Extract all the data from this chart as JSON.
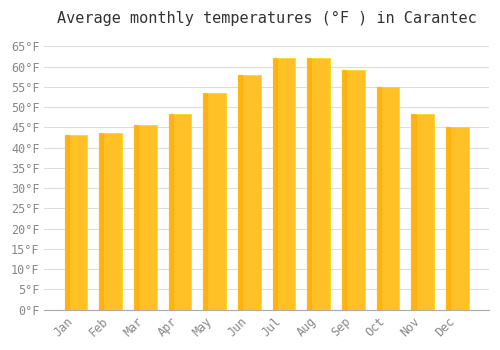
{
  "title": "Average monthly temperatures (°F ) in Carantec",
  "months": [
    "Jan",
    "Feb",
    "Mar",
    "Apr",
    "May",
    "Jun",
    "Jul",
    "Aug",
    "Sep",
    "Oct",
    "Nov",
    "Dec"
  ],
  "values": [
    43.2,
    43.5,
    45.5,
    48.2,
    53.4,
    57.9,
    62.1,
    62.1,
    59.2,
    55.0,
    48.2,
    45.1
  ],
  "bar_color_main": "#FFC125",
  "bar_color_edge": "#FFD700",
  "bar_color_gradient_bottom": "#FFA500",
  "ylim": [
    0,
    68
  ],
  "yticks": [
    0,
    5,
    10,
    15,
    20,
    25,
    30,
    35,
    40,
    45,
    50,
    55,
    60,
    65
  ],
  "ytick_labels": [
    "0°F",
    "5°F",
    "10°F",
    "15°F",
    "20°F",
    "25°F",
    "30°F",
    "35°F",
    "40°F",
    "45°F",
    "50°F",
    "55°F",
    "60°F",
    "65°F"
  ],
  "background_color": "#ffffff",
  "grid_color": "#dddddd",
  "font_family": "monospace",
  "title_fontsize": 11,
  "tick_fontsize": 8.5,
  "bar_width": 0.65
}
